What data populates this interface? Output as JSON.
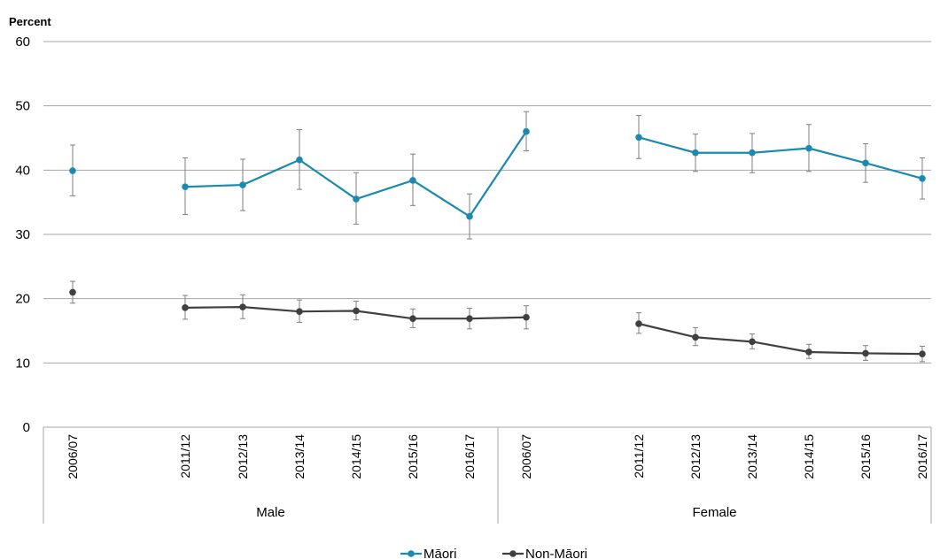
{
  "chart_data": {
    "type": "line",
    "ylabel": "Percent",
    "ylim": [
      0,
      60
    ],
    "yticks": [
      0,
      10,
      20,
      30,
      40,
      50,
      60
    ],
    "groups": [
      {
        "name": "Male",
        "categories": [
          "2006/07",
          "2011/12",
          "2012/13",
          "2013/14",
          "2014/15",
          "2015/16",
          "2016/17"
        ]
      },
      {
        "name": "Female",
        "categories": [
          "2006/07",
          "2011/12",
          "2012/13",
          "2013/14",
          "2014/15",
          "2015/16",
          "2016/17"
        ]
      }
    ],
    "series": [
      {
        "name": "Māori",
        "color": "#1a8ab0",
        "groups": [
          {
            "values": [
              39.9,
              37.4,
              37.7,
              41.6,
              35.5,
              38.4,
              32.8
            ],
            "lower": [
              36.0,
              33.1,
              33.7,
              37.0,
              31.6,
              34.5,
              29.3
            ],
            "upper": [
              43.9,
              41.9,
              41.7,
              46.3,
              39.6,
              42.5,
              36.3
            ]
          },
          {
            "values": [
              46.0,
              45.1,
              42.7,
              42.7,
              43.4,
              41.1,
              38.7
            ],
            "lower": [
              43.0,
              41.8,
              39.8,
              39.6,
              39.8,
              38.1,
              35.5
            ],
            "upper": [
              49.1,
              48.5,
              45.6,
              45.7,
              47.1,
              44.1,
              41.9
            ]
          }
        ]
      },
      {
        "name": "Non-Māori",
        "color": "#404040",
        "groups": [
          {
            "values": [
              21.0,
              18.6,
              18.7,
              18.0,
              18.1,
              16.9,
              16.9
            ],
            "lower": [
              19.3,
              16.8,
              16.9,
              16.3,
              16.7,
              15.5,
              15.3
            ],
            "upper": [
              22.7,
              20.5,
              20.6,
              19.8,
              19.6,
              18.4,
              18.5
            ]
          },
          {
            "values": [
              17.1,
              16.1,
              14.0,
              13.3,
              11.7,
              11.5,
              11.4
            ],
            "lower": [
              15.3,
              14.6,
              12.7,
              12.2,
              10.7,
              10.4,
              10.2
            ],
            "upper": [
              18.9,
              17.8,
              15.5,
              14.5,
              12.9,
              12.7,
              12.6
            ]
          }
        ]
      }
    ],
    "legend_position": "bottom-center",
    "grid": true
  }
}
